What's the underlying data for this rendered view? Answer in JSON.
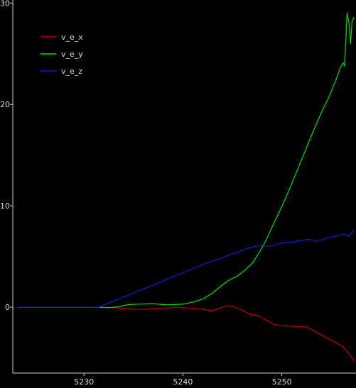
{
  "chart_data": {
    "type": "line",
    "title": "",
    "xlabel": "",
    "ylabel": "",
    "xlim": [
      5222.8,
      5257.5
    ],
    "ylim": [
      -6.5,
      30.3
    ],
    "x_ticks": [
      5230,
      5240,
      5250
    ],
    "y_ticks": [
      0,
      10,
      20,
      30
    ],
    "grid": false,
    "legend_position": "top-left",
    "series": [
      {
        "name": "v_e_x",
        "color": "#c00000",
        "points": [
          [
            5223.3,
            0.0
          ],
          [
            5231.5,
            0.0
          ],
          [
            5233.0,
            -0.05
          ],
          [
            5234.0,
            -0.1
          ],
          [
            5235.0,
            -0.2
          ],
          [
            5236.0,
            -0.2
          ],
          [
            5237.0,
            -0.15
          ],
          [
            5238.0,
            -0.1
          ],
          [
            5239.0,
            -0.05
          ],
          [
            5240.0,
            -0.05
          ],
          [
            5241.0,
            -0.1
          ],
          [
            5242.0,
            -0.2
          ],
          [
            5242.8,
            -0.35
          ],
          [
            5243.5,
            -0.2
          ],
          [
            5244.0,
            0.0
          ],
          [
            5244.6,
            0.15
          ],
          [
            5245.2,
            0.05
          ],
          [
            5246.0,
            -0.3
          ],
          [
            5246.8,
            -0.7
          ],
          [
            5247.5,
            -0.8
          ],
          [
            5248.3,
            -1.2
          ],
          [
            5249.0,
            -1.6
          ],
          [
            5249.6,
            -1.8
          ],
          [
            5250.5,
            -1.85
          ],
          [
            5251.5,
            -1.9
          ],
          [
            5252.5,
            -1.95
          ],
          [
            5253.0,
            -2.2
          ],
          [
            5253.8,
            -2.6
          ],
          [
            5254.5,
            -3.0
          ],
          [
            5255.5,
            -3.5
          ],
          [
            5256.3,
            -4.0
          ],
          [
            5256.8,
            -4.6
          ],
          [
            5257.3,
            -5.3
          ]
        ]
      },
      {
        "name": "v_e_y",
        "color": "#00e000",
        "points": [
          [
            5223.3,
            0.0
          ],
          [
            5231.5,
            0.0
          ],
          [
            5232.5,
            -0.05
          ],
          [
            5233.5,
            0.05
          ],
          [
            5234.5,
            0.25
          ],
          [
            5235.5,
            0.3
          ],
          [
            5237.0,
            0.35
          ],
          [
            5238.0,
            0.25
          ],
          [
            5239.0,
            0.25
          ],
          [
            5240.0,
            0.3
          ],
          [
            5241.0,
            0.5
          ],
          [
            5242.0,
            0.8
          ],
          [
            5243.0,
            1.4
          ],
          [
            5244.0,
            2.2
          ],
          [
            5244.7,
            2.7
          ],
          [
            5245.4,
            3.0
          ],
          [
            5246.2,
            3.6
          ],
          [
            5247.0,
            4.3
          ],
          [
            5247.8,
            5.5
          ],
          [
            5248.5,
            6.8
          ],
          [
            5249.2,
            8.3
          ],
          [
            5250.0,
            9.9
          ],
          [
            5250.8,
            11.7
          ],
          [
            5251.6,
            13.6
          ],
          [
            5252.4,
            15.5
          ],
          [
            5253.2,
            17.4
          ],
          [
            5254.0,
            19.2
          ],
          [
            5254.8,
            20.8
          ],
          [
            5255.5,
            22.5
          ],
          [
            5255.9,
            23.6
          ],
          [
            5256.2,
            24.1
          ],
          [
            5256.35,
            23.8
          ],
          [
            5256.6,
            29.0
          ],
          [
            5256.8,
            28.0
          ],
          [
            5256.95,
            26.0
          ],
          [
            5257.1,
            28.2
          ],
          [
            5257.3,
            28.6
          ]
        ]
      },
      {
        "name": "v_e_z",
        "color": "#1020c8",
        "points": [
          [
            5223.3,
            0.0
          ],
          [
            5231.5,
            0.0
          ],
          [
            5233.0,
            0.6
          ],
          [
            5235.0,
            1.4
          ],
          [
            5237.0,
            2.2
          ],
          [
            5239.0,
            3.0
          ],
          [
            5241.0,
            3.8
          ],
          [
            5242.5,
            4.4
          ],
          [
            5243.5,
            4.7
          ],
          [
            5244.5,
            5.1
          ],
          [
            5245.5,
            5.4
          ],
          [
            5246.5,
            5.8
          ],
          [
            5247.8,
            6.1
          ],
          [
            5248.8,
            6.0
          ],
          [
            5249.5,
            6.2
          ],
          [
            5250.3,
            6.4
          ],
          [
            5251.0,
            6.4
          ],
          [
            5252.0,
            6.6
          ],
          [
            5252.8,
            6.7
          ],
          [
            5253.5,
            6.5
          ],
          [
            5254.5,
            6.8
          ],
          [
            5255.5,
            7.0
          ],
          [
            5256.3,
            7.2
          ],
          [
            5256.8,
            7.0
          ],
          [
            5257.3,
            7.6
          ]
        ]
      }
    ]
  }
}
